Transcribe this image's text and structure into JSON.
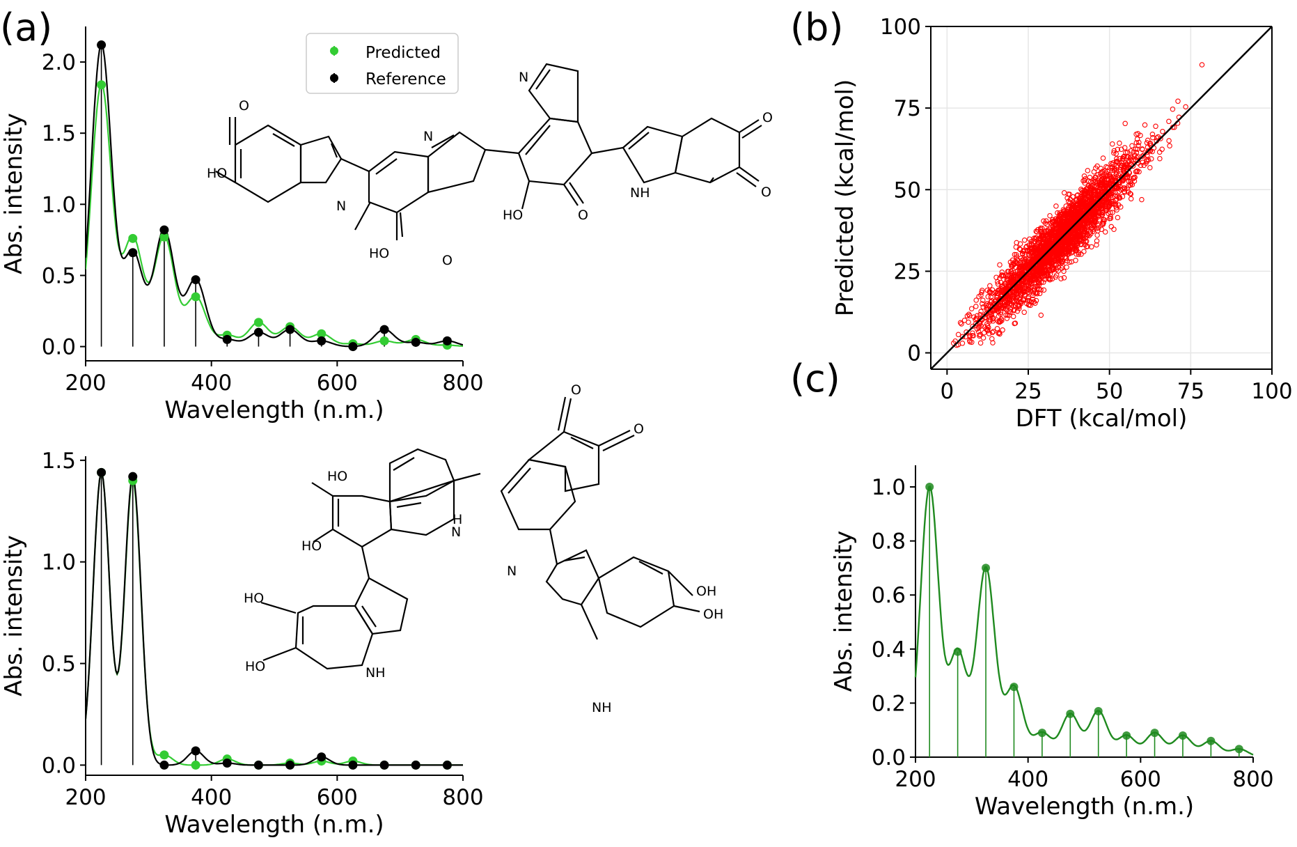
{
  "colors": {
    "predicted": "#33cc33",
    "reference": "#000000",
    "scatter": "#ff0000",
    "panel_c": "#1f8a1f",
    "oxygen": "#ff0d0d",
    "nitrogen": "#3030b0"
  },
  "panels": {
    "a": "(a)",
    "b": "(b)",
    "c": "(c)"
  },
  "legend": {
    "predicted": "Predicted",
    "reference": "Reference"
  },
  "atoms": {
    "O": "O",
    "N": "N",
    "NH": "NH",
    "HO": "HO",
    "OH": "OH",
    "H": "H"
  },
  "chart_data": [
    {
      "id": "a_top",
      "type": "line",
      "xlabel": "Wavelength (n.m.)",
      "ylabel": "Abs. intensity",
      "xlim": [
        200,
        800
      ],
      "ylim": [
        -0.1,
        2.25
      ],
      "xticks": [
        "200",
        "400",
        "600",
        "800"
      ],
      "yticks": [
        "0.0",
        "0.5",
        "1.0",
        "1.5",
        "2.0"
      ],
      "grid": false,
      "legend_position": "top-center",
      "x": [
        225,
        275,
        325,
        375,
        425,
        475,
        525,
        575,
        625,
        675,
        725,
        775
      ],
      "series": [
        {
          "name": "Predicted",
          "values": [
            1.84,
            0.76,
            0.77,
            0.35,
            0.08,
            0.17,
            0.14,
            0.09,
            0.02,
            0.04,
            0.05,
            0.01
          ]
        },
        {
          "name": "Reference",
          "values": [
            2.12,
            0.66,
            0.82,
            0.47,
            0.05,
            0.1,
            0.12,
            0.04,
            0.0,
            0.12,
            0.03,
            0.04
          ]
        }
      ]
    },
    {
      "id": "a_bottom",
      "type": "line",
      "xlabel": "Wavelength (n.m.)",
      "ylabel": "Abs. intensity",
      "xlim": [
        200,
        800
      ],
      "ylim": [
        -0.05,
        1.52
      ],
      "xticks": [
        "200",
        "400",
        "600",
        "800"
      ],
      "yticks": [
        "0.0",
        "0.5",
        "1.0",
        "1.5"
      ],
      "grid": false,
      "x": [
        225,
        275,
        325,
        375,
        425,
        475,
        525,
        575,
        625,
        675,
        725,
        775
      ],
      "series": [
        {
          "name": "Predicted",
          "values": [
            1.44,
            1.4,
            0.05,
            0.0,
            0.03,
            0.0,
            0.01,
            0.02,
            0.02,
            0.0,
            0.0,
            0.0
          ]
        },
        {
          "name": "Reference",
          "values": [
            1.44,
            1.42,
            0.0,
            0.07,
            0.01,
            0.0,
            0.0,
            0.04,
            0.0,
            0.0,
            0.0,
            0.0
          ]
        }
      ]
    },
    {
      "id": "b",
      "type": "scatter",
      "xlabel": "DFT (kcal/mol)",
      "ylabel": "Predicted (kcal/mol)",
      "xlim": [
        -5,
        100
      ],
      "ylim": [
        -5,
        100
      ],
      "xticks": [
        "0",
        "25",
        "50",
        "75",
        "100"
      ],
      "yticks": [
        "0",
        "25",
        "50",
        "75",
        "100"
      ],
      "grid": true,
      "diagonal": "y = x",
      "trend": {
        "slope": 1.0,
        "intercept": 0,
        "x_mean": 35,
        "x_sd": 12,
        "noise_sd": 4.5,
        "n_points": 2600
      }
    },
    {
      "id": "c",
      "type": "line",
      "xlabel": "Wavelength (n.m.)",
      "ylabel": "Abs. intensity",
      "xlim": [
        200,
        800
      ],
      "ylim": [
        0,
        1.08
      ],
      "xticks": [
        "200",
        "400",
        "600",
        "800"
      ],
      "yticks": [
        "0.0",
        "0.2",
        "0.4",
        "0.6",
        "0.8",
        "1.0"
      ],
      "grid": false,
      "x": [
        225,
        275,
        325,
        375,
        425,
        475,
        525,
        575,
        625,
        675,
        725,
        775
      ],
      "values": [
        1.0,
        0.39,
        0.7,
        0.26,
        0.09,
        0.16,
        0.17,
        0.08,
        0.09,
        0.08,
        0.06,
        0.03
      ]
    }
  ]
}
